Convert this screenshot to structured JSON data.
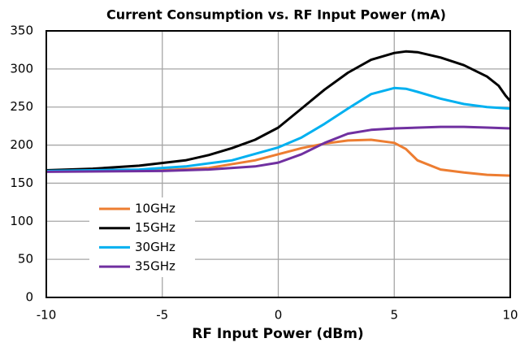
{
  "chart_data": {
    "type": "line",
    "title": "Current Consumption vs. RF Input Power (mA)",
    "x_label": "RF Input Power (dBm)",
    "xlim": [
      -10,
      10
    ],
    "xticks": [
      -10,
      -5,
      0,
      5,
      10
    ],
    "ylim": [
      0,
      350
    ],
    "yticks": [
      0,
      50,
      100,
      150,
      200,
      250,
      300,
      350
    ],
    "grid": true,
    "legend": "lower left",
    "series": [
      {
        "name": "10GHz",
        "color": "#ed7d31",
        "x": [
          -10,
          -5,
          -3,
          -1,
          0,
          1,
          2,
          3,
          4,
          5,
          5.5,
          6,
          7,
          8,
          9,
          10
        ],
        "values": [
          166,
          167,
          170,
          180,
          188,
          196,
          202,
          206,
          207,
          203,
          195,
          180,
          168,
          164,
          161,
          160
        ]
      },
      {
        "name": "15GHz",
        "color": "#000000",
        "x": [
          -10,
          -8,
          -6,
          -4,
          -3,
          -2,
          -1,
          0,
          1,
          2,
          3,
          4,
          5,
          5.5,
          6,
          7,
          8,
          9,
          9.5,
          9.8,
          10
        ],
        "values": [
          167,
          169,
          173,
          180,
          187,
          196,
          207,
          223,
          248,
          273,
          295,
          312,
          321,
          323,
          322,
          315,
          305,
          290,
          278,
          265,
          258
        ]
      },
      {
        "name": "30GHz",
        "color": "#00b0f0",
        "x": [
          -10,
          -6,
          -4,
          -2,
          0,
          1,
          2,
          3,
          4,
          5,
          5.5,
          6,
          7,
          8,
          9,
          10
        ],
        "values": [
          166,
          168,
          172,
          180,
          197,
          210,
          228,
          248,
          267,
          275,
          274,
          270,
          261,
          254,
          250,
          248
        ]
      },
      {
        "name": "35GHz",
        "color": "#7030a0",
        "x": [
          -10,
          -5,
          -3,
          -1,
          0,
          1,
          2,
          3,
          4,
          5,
          7,
          8,
          9,
          10
        ],
        "values": [
          165,
          166,
          168,
          172,
          177,
          188,
          203,
          215,
          220,
          222,
          224,
          224,
          223,
          222
        ]
      }
    ]
  }
}
